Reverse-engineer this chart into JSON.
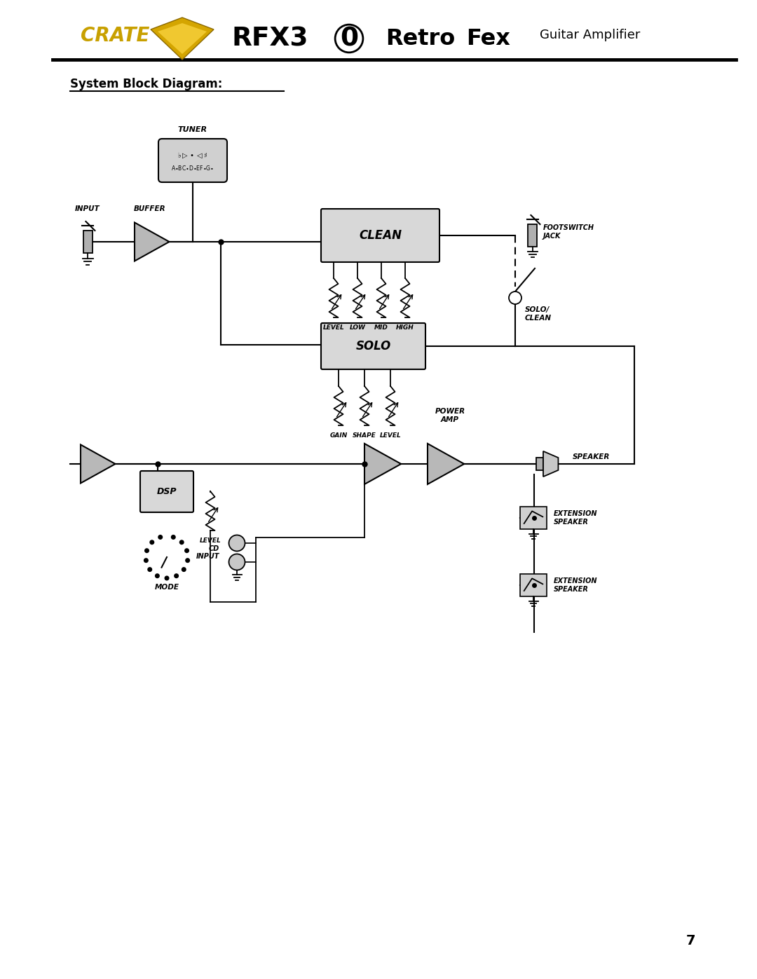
{
  "background_color": "#ffffff",
  "line_color": "#000000",
  "labels": {
    "tuner": "TUNER",
    "buffer": "BUFFER",
    "input": "INPUT",
    "clean": "CLEAN",
    "solo": "SOLO",
    "footswitch": "FOOTSWITCH\nJACK",
    "solo_clean": "SOLO/\nCLEAN",
    "dsp": "DSP",
    "dsp_level": "LEVEL",
    "mode": "MODE",
    "cd_input": "CD\nINPUT",
    "power_amp": "POWER\nAMP",
    "speaker": "SPEAKER",
    "ext_speaker1": "EXTENSION\nSPEAKER",
    "ext_speaker2": "EXTENSION\nSPEAKER",
    "clean_pots": [
      "LEVEL",
      "LOW",
      "MID",
      "HIGH"
    ],
    "solo_pots": [
      "GAIN",
      "SHAPE",
      "LEVEL"
    ],
    "system_block": "System Block Diagram:",
    "page": "7"
  }
}
